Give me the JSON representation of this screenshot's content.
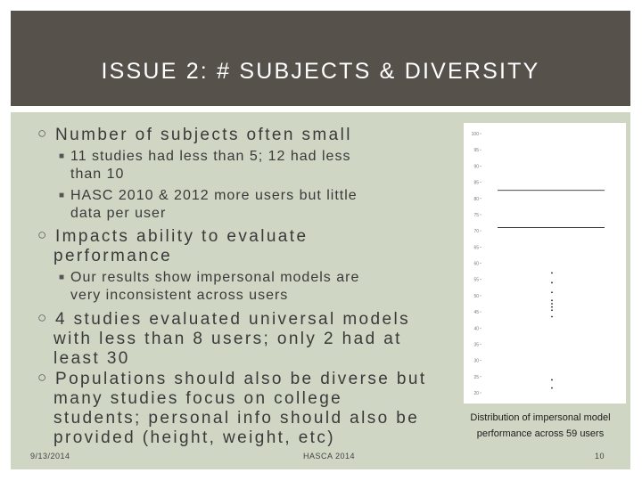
{
  "title": "ISSUE 2: # SUBJECTS & DIVERSITY",
  "bullets": {
    "b1": "Number of subjects often small",
    "b1_1a": "11 studies had less than 5; 12 had less",
    "b1_1b": "than 10",
    "b1_2a": "HASC 2010 & 2012 more users but little",
    "b1_2b": "data per user",
    "b2a": "Impacts ability to evaluate",
    "b2b": "performance",
    "b2_1a": "Our results show impersonal models are",
    "b2_1b": "very inconsistent across users",
    "b3a": "4 studies evaluated universal models",
    "b3b": "with less than 8 users; only 2 had at",
    "b3c": "least 30",
    "b4a": "Populations should also be diverse but",
    "b4b": "many studies focus on college",
    "b4c": "students; personal info should also be",
    "b4d": "provided (height, weight, etc)"
  },
  "caption_a": "Distribution of impersonal model",
  "caption_b": "performance across 59 users",
  "footer": {
    "date": "9/13/2014",
    "center": "HASCA 2014",
    "page": "10"
  },
  "chart_data": {
    "type": "scatter",
    "title": "",
    "xlabel": "",
    "ylabel": "",
    "ylim": [
      20,
      100
    ],
    "yticks": [
      "100",
      "95",
      "90",
      "85",
      "80",
      "75",
      "70",
      "65",
      "60",
      "55",
      "50",
      "45",
      "40",
      "35",
      "30",
      "25",
      "20"
    ],
    "points": [
      57,
      54,
      51,
      48.5,
      47.5,
      46.5,
      45.5,
      43.5,
      24,
      21.5
    ],
    "reference_lines": [
      82.5,
      71
    ]
  }
}
